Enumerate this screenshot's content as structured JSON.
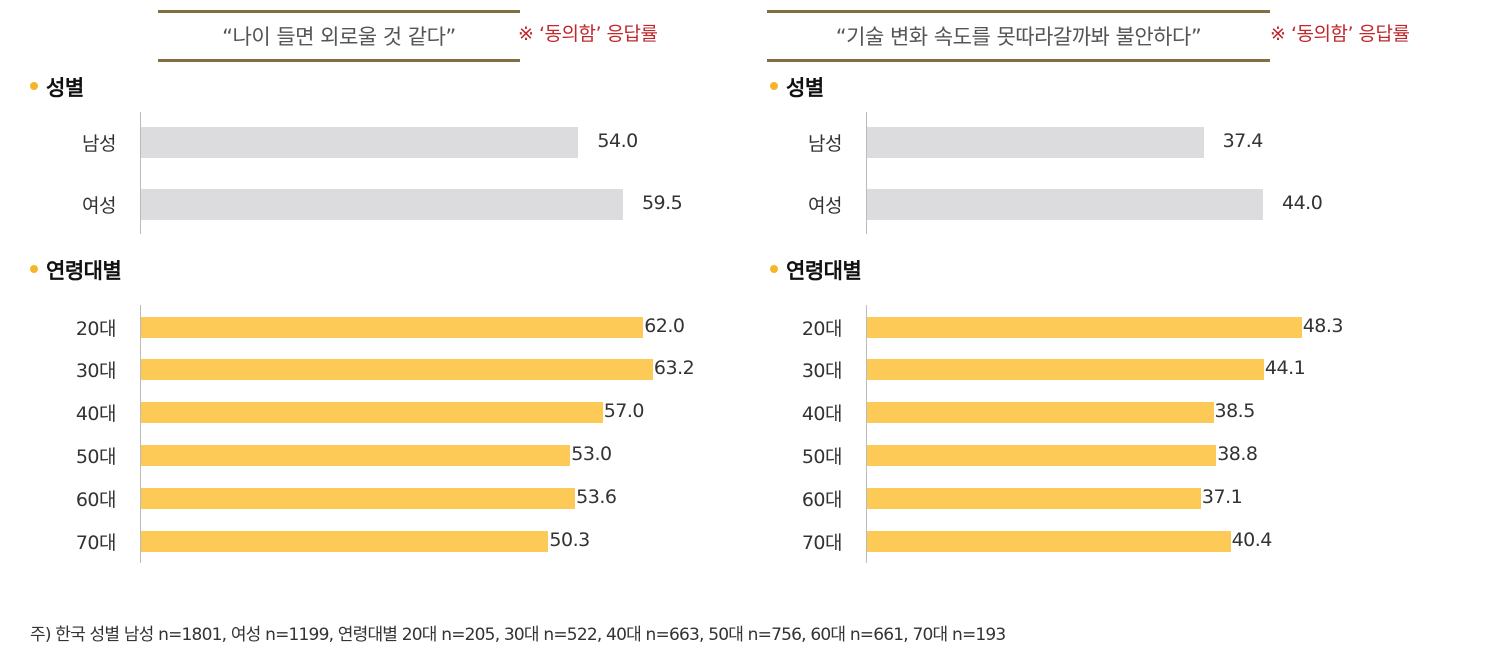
{
  "colors": {
    "gender_bar": "#dcdcde",
    "age_bar": "#fdca58",
    "title_rule": "#846c45",
    "note": "#c0282e",
    "bullet": "#f6b52b"
  },
  "chart_data": [
    {
      "type": "bar",
      "orientation": "horizontal",
      "title": "“나이 들면 외로울 것 같다”",
      "note": "※ ‘동의함’ 응답률",
      "groups": [
        {
          "label": "성별",
          "categories": [
            "남성",
            "여성"
          ],
          "values": [
            54.0,
            59.5
          ],
          "labels": [
            "54.0",
            "59.5"
          ]
        },
        {
          "label": "연령대별",
          "categories": [
            "20대",
            "30대",
            "40대",
            "50대",
            "60대",
            "70대"
          ],
          "values": [
            62.0,
            63.2,
            57.0,
            53.0,
            53.6,
            50.3
          ],
          "labels": [
            "62.0",
            "63.2",
            "57.0",
            "53.0",
            "53.6",
            "50.3"
          ]
        }
      ]
    },
    {
      "type": "bar",
      "orientation": "horizontal",
      "title": "“기술 변화 속도를 못따라갈까봐 불안하다”",
      "note": "※ ‘동의함’ 응답률",
      "groups": [
        {
          "label": "성별",
          "categories": [
            "남성",
            "여성"
          ],
          "values": [
            37.4,
            44.0
          ],
          "labels": [
            "37.4",
            "44.0"
          ]
        },
        {
          "label": "연령대별",
          "categories": [
            "20대",
            "30대",
            "40대",
            "50대",
            "60대",
            "70대"
          ],
          "values": [
            48.3,
            44.1,
            38.5,
            38.8,
            37.1,
            40.4
          ],
          "labels": [
            "48.3",
            "44.1",
            "38.5",
            "38.8",
            "37.1",
            "40.4"
          ]
        }
      ]
    }
  ],
  "footnote": "주) 한국 성별 남성 n=1801, 여성 n=1199, 연령대별 20대 n=205, 30대 n=522, 40대 n=663, 50대 n=756, 60대 n=661, 70대 n=193"
}
